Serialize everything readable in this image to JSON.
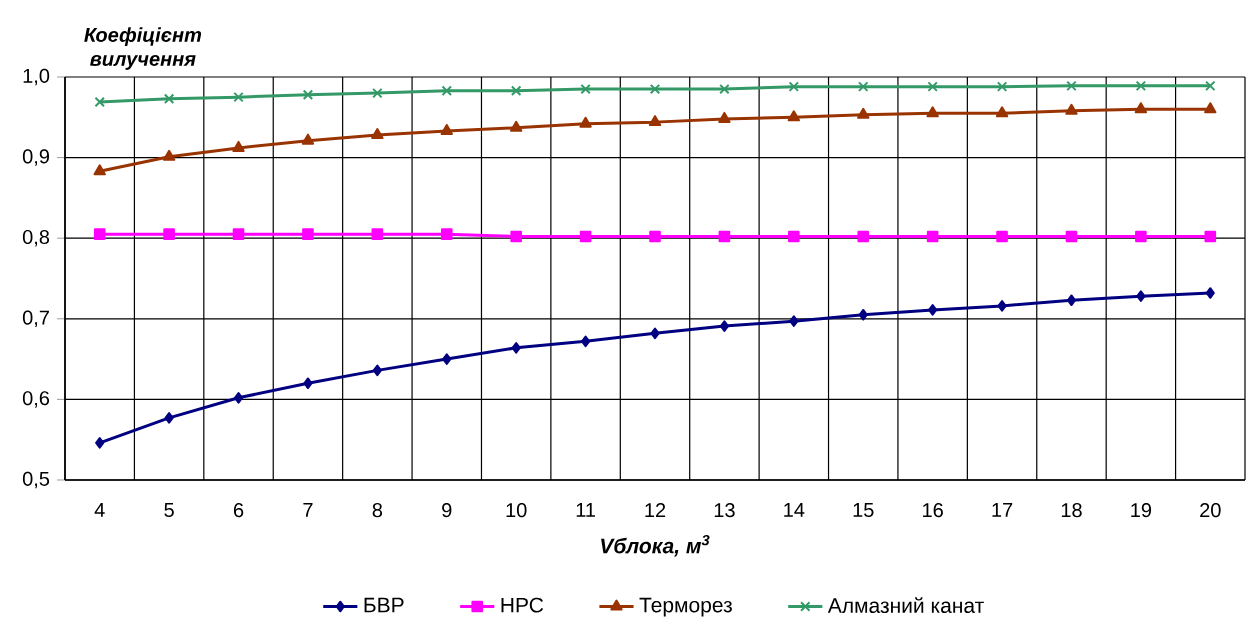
{
  "chart_data": {
    "type": "line",
    "ylabel": "Коефіцієнт вилучення",
    "xlabel": "Vблока, м$^{3}$",
    "categories": [
      "4",
      "5",
      "6",
      "7",
      "8",
      "9",
      "10",
      "11",
      "12",
      "13",
      "14",
      "15",
      "16",
      "17",
      "18",
      "19",
      "20"
    ],
    "series": [
      {
        "name": "БВР",
        "color": "#000080",
        "marker": "diamond",
        "values": [
          0.546,
          0.577,
          0.602,
          0.62,
          0.636,
          0.65,
          0.664,
          0.672,
          0.682,
          0.691,
          0.697,
          0.705,
          0.711,
          0.716,
          0.723,
          0.728,
          0.732
        ]
      },
      {
        "name": "НРС",
        "color": "#ff00ff",
        "marker": "square",
        "values": [
          0.805,
          0.805,
          0.805,
          0.805,
          0.805,
          0.805,
          0.802,
          0.802,
          0.802,
          0.802,
          0.802,
          0.802,
          0.802,
          0.802,
          0.802,
          0.802,
          0.802
        ]
      },
      {
        "name": "Терморез",
        "color": "#993300",
        "marker": "triangle",
        "values": [
          0.883,
          0.901,
          0.912,
          0.921,
          0.928,
          0.933,
          0.937,
          0.942,
          0.944,
          0.948,
          0.95,
          0.953,
          0.955,
          0.955,
          0.958,
          0.96,
          0.96
        ]
      },
      {
        "name": "Алмазний канат",
        "color": "#339966",
        "marker": "cross",
        "values": [
          0.969,
          0.973,
          0.975,
          0.978,
          0.98,
          0.983,
          0.983,
          0.985,
          0.985,
          0.985,
          0.988,
          0.988,
          0.988,
          0.988,
          0.989,
          0.989,
          0.989
        ]
      }
    ],
    "ylim": [
      0.5,
      1.0
    ],
    "yticks": [
      {
        "value": 0.5,
        "label": "0,5"
      },
      {
        "value": 0.6,
        "label": "0,6"
      },
      {
        "value": 0.7,
        "label": "0,7"
      },
      {
        "value": 0.8,
        "label": "0,8"
      },
      {
        "value": 0.9,
        "label": "0,9"
      },
      {
        "value": 1.0,
        "label": "1,0"
      }
    ],
    "grid": true,
    "legend": "bottom",
    "line_style": "solid"
  }
}
